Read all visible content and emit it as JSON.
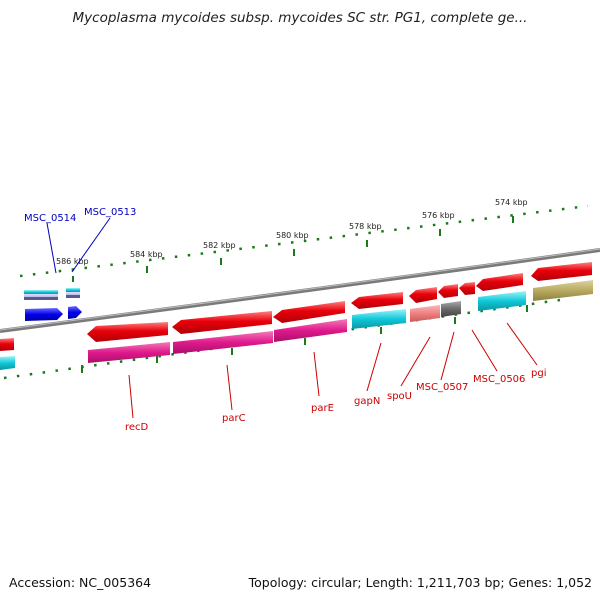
{
  "title": "Mycoplasma mycoides subsp. mycoides SC str. PG1, complete ge...",
  "footer": {
    "accession": "Accession: NC_005364",
    "stats": "Topology: circular; Length: 1,211,703 bp; Genes: 1,052"
  },
  "ruler_labels": [
    "574 kbp",
    "576 kbp",
    "578 kbp",
    "580 kbp",
    "582 kbp",
    "584 kbp",
    "586 kbp"
  ],
  "gene_labels": [
    "MSC_0514",
    "MSC_0513",
    "recD",
    "parC",
    "parE",
    "gapN",
    "spoU",
    "MSC_0507",
    "MSC_0506",
    "pgi"
  ],
  "colors": {
    "cds_red": "#e8000b",
    "magenta": "#e0198c",
    "cyan": "#10c8d8",
    "salmon": "#f08080",
    "olive": "#b8aa60",
    "blue": "#0000e8",
    "gray": "#6a6a6a",
    "tick_green": "#1a7a1a",
    "label_blue": "#0000c0",
    "label_red": "#cc0000",
    "backbone": "#888888"
  }
}
